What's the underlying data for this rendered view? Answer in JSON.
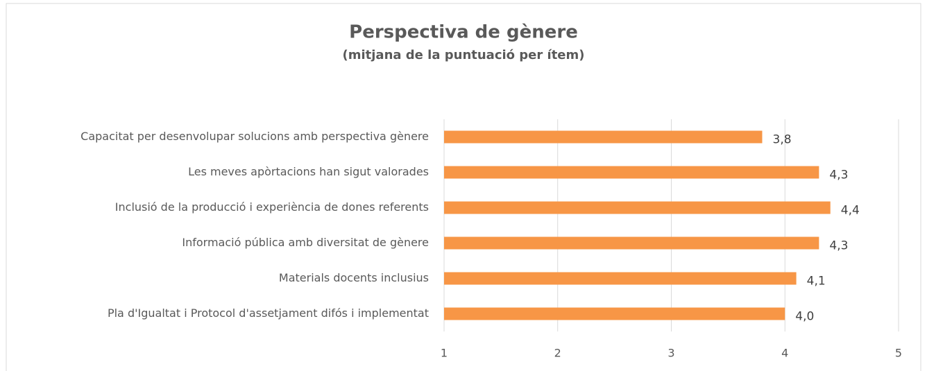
{
  "chart_data": {
    "type": "barh",
    "title": "Perspectiva de gènere",
    "subtitle": "(mitjana de la puntuació per ítem)",
    "categories": [
      "Capacitat per desenvolupar solucions amb perspectiva gènere",
      "Les meves apòrtacions han sigut valorades",
      "Inclusió de la producció i experiència de dones referents",
      "Informació pública amb diversitat de gènere",
      "Materials docents inclusius",
      "Pla d'Igualtat i Protocol d'assetjament difós i implementat"
    ],
    "values": [
      3.8,
      4.3,
      4.4,
      4.3,
      4.1,
      4.0
    ],
    "value_labels": [
      "3,8",
      "4,3",
      "4,4",
      "4,3",
      "4,1",
      "4,0"
    ],
    "color": "#f79646",
    "xlim": [
      1,
      5
    ],
    "xticks": [
      1,
      2,
      3,
      4,
      5
    ],
    "grid": true
  }
}
